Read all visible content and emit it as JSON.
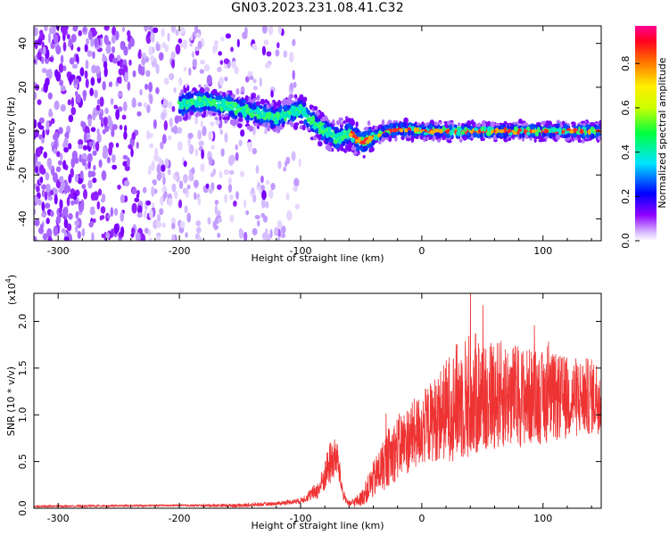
{
  "page": {
    "title": "GN03.2023.231.08.41.C32"
  },
  "chart_data": [
    {
      "type": "heatmap",
      "title": "",
      "xlabel": "Height of straight line (km)",
      "ylabel": "Frequency (Hz)",
      "xlim": [
        -320,
        148
      ],
      "ylim": [
        -50,
        48
      ],
      "x_ticks": [
        -300,
        -200,
        -100,
        0,
        100
      ],
      "x_tick_labels": [
        "-300",
        "-200",
        "-100",
        "0",
        "100"
      ],
      "y_ticks": [
        -40,
        -20,
        0,
        20,
        40
      ],
      "y_tick_labels": [
        "-40",
        "-20",
        "0",
        "20",
        "40"
      ],
      "colorbar": {
        "label": "Normalized spectral amplitude",
        "range": [
          0.0,
          0.97
        ],
        "ticks": [
          0.0,
          0.2,
          0.4,
          0.6,
          0.8
        ],
        "tick_labels": [
          "0.0",
          "0.2",
          "0.4",
          "0.6",
          "0.8"
        ],
        "colormap": "rainbow"
      },
      "ridge": {
        "x": [
          -200,
          -180,
          -150,
          -120,
          -100,
          -90,
          -80,
          -70,
          -60,
          -50,
          -40,
          -30,
          -20,
          0,
          50,
          100,
          148
        ],
        "frequency": [
          12,
          14,
          10,
          6,
          10,
          4,
          0,
          -3,
          -1,
          -5,
          -3,
          0,
          1,
          0,
          0,
          0,
          0
        ]
      },
      "grid": false
    },
    {
      "type": "line",
      "title": "",
      "xlabel": "Height of straight line (km)",
      "ylabel": "SNR (10 * v/v)",
      "y_multiplier": "(x10",
      "y_multiplier_exp": "4",
      "y_multiplier_close": ")",
      "xlim": [
        -320,
        148
      ],
      "ylim": [
        0,
        2.3
      ],
      "x_ticks": [
        -300,
        -200,
        -100,
        0,
        100
      ],
      "x_tick_labels": [
        "-300",
        "-200",
        "-100",
        "0",
        "100"
      ],
      "y_ticks": [
        0.0,
        0.5,
        1.0,
        1.5,
        2.0
      ],
      "y_tick_labels": [
        "0.0",
        "0.5",
        "1.0",
        "1.5",
        "2.0"
      ],
      "grid": false,
      "series_color": "#ee3333",
      "envelope": {
        "x": [
          -320,
          -200,
          -150,
          -120,
          -100,
          -85,
          -75,
          -70,
          -65,
          -60,
          -50,
          -40,
          -30,
          -20,
          0,
          10,
          20,
          30,
          40,
          60,
          80,
          100,
          120,
          148
        ],
        "base": [
          0.02,
          0.03,
          0.03,
          0.05,
          0.08,
          0.2,
          0.5,
          0.55,
          0.15,
          0.04,
          0.1,
          0.3,
          0.5,
          0.65,
          0.85,
          0.95,
          1.05,
          1.15,
          1.2,
          1.22,
          1.2,
          1.18,
          1.18,
          1.2
        ],
        "spread": [
          0.01,
          0.01,
          0.02,
          0.02,
          0.03,
          0.1,
          0.25,
          0.2,
          0.06,
          0.03,
          0.08,
          0.2,
          0.3,
          0.35,
          0.4,
          0.45,
          0.55,
          0.65,
          0.7,
          0.6,
          0.55,
          0.5,
          0.45,
          0.4
        ]
      }
    }
  ]
}
